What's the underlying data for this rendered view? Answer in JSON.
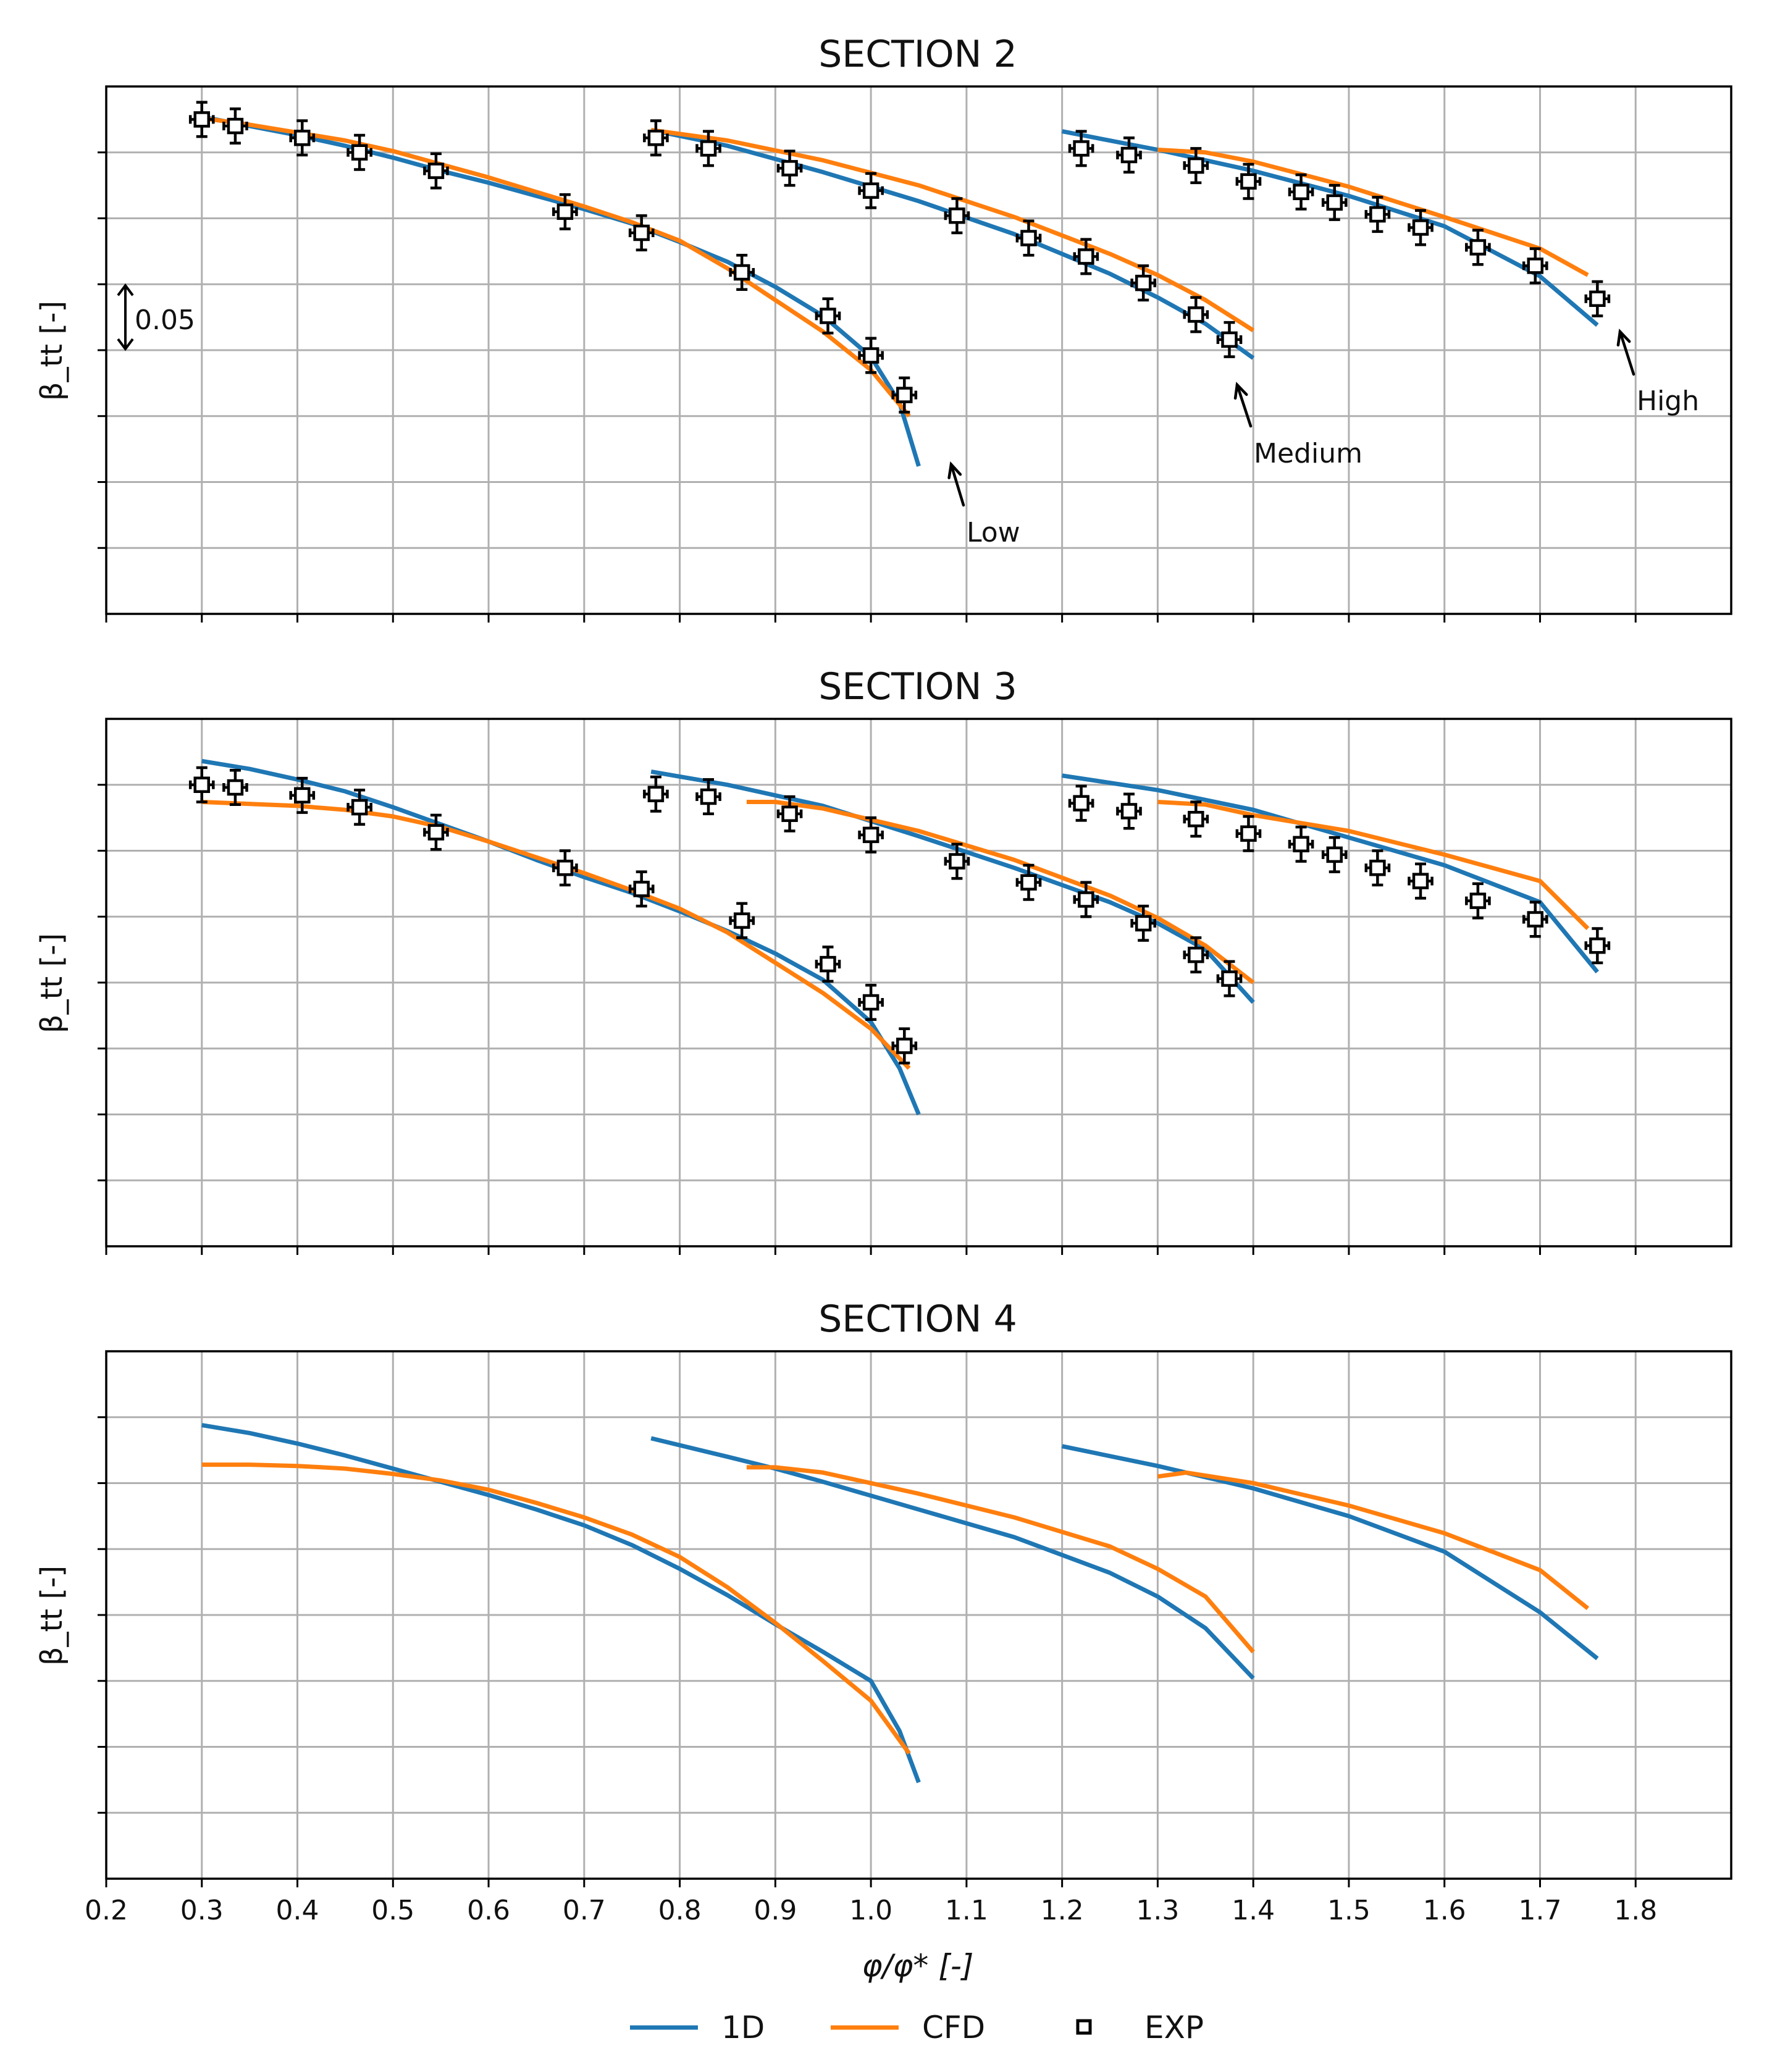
{
  "chart_data": {
    "type": "line",
    "xlabel": "φ/φ* [-]",
    "x_range": [
      0.2,
      1.9
    ],
    "x_ticks": [
      0.2,
      0.3,
      0.4,
      0.5,
      0.6,
      0.7,
      0.8,
      0.9,
      1.0,
      1.1,
      1.2,
      1.3,
      1.4,
      1.5,
      1.6,
      1.7,
      1.8
    ],
    "x_tick_labels": [
      "0.2",
      "0.3",
      "0.4",
      "0.5",
      "0.6",
      "0.7",
      "0.8",
      "0.9",
      "1.0",
      "1.1",
      "1.2",
      "1.3",
      "1.4",
      "1.5",
      "1.6",
      "1.7",
      "1.8"
    ],
    "y_range": [
      0.0,
      0.4
    ],
    "y_ticks": [
      0.05,
      0.1,
      0.15,
      0.2,
      0.25,
      0.3,
      0.35
    ],
    "y_tick_labels_shown": false,
    "legend": {
      "placement": "bottom-center",
      "entries": [
        {
          "key": "1d",
          "label": "1D",
          "color": "#1f77b4",
          "marker": "line"
        },
        {
          "key": "cfd",
          "label": "CFD",
          "color": "#ff7f0e",
          "marker": "line"
        },
        {
          "key": "exp",
          "label": "EXP",
          "color": "#000000",
          "marker": "square"
        }
      ]
    },
    "panels": [
      {
        "title": "SECTION 2",
        "ylabel": "β_tt [-]",
        "scale_bar": {
          "label": "0.05",
          "from": 0.2,
          "to": 0.25
        },
        "annotations": [
          {
            "text": "Low",
            "curve": "low"
          },
          {
            "text": "Medium",
            "curve": "medium"
          },
          {
            "text": "High",
            "curve": "high"
          }
        ],
        "series": [
          {
            "name": "1D",
            "curve": "low",
            "x": [
              0.3,
              0.35,
              0.4,
              0.45,
              0.5,
              0.55,
              0.6,
              0.65,
              0.7,
              0.75,
              0.8,
              0.85,
              0.9,
              0.95,
              1.0,
              1.03,
              1.05
            ],
            "y": [
              0.377,
              0.37,
              0.363,
              0.355,
              0.346,
              0.336,
              0.327,
              0.317,
              0.307,
              0.296,
              0.282,
              0.267,
              0.248,
              0.226,
              0.195,
              0.16,
              0.112
            ]
          },
          {
            "name": "CFD",
            "curve": "low",
            "x": [
              0.3,
              0.35,
              0.4,
              0.45,
              0.5,
              0.55,
              0.6,
              0.65,
              0.7,
              0.75,
              0.8,
              0.85,
              0.9,
              0.95,
              1.0,
              1.04
            ],
            "y": [
              0.376,
              0.371,
              0.365,
              0.359,
              0.351,
              0.341,
              0.331,
              0.32,
              0.309,
              0.297,
              0.283,
              0.262,
              0.238,
              0.214,
              0.185,
              0.15
            ]
          },
          {
            "name": "1D",
            "curve": "medium",
            "x": [
              0.77,
              0.85,
              0.95,
              1.05,
              1.15,
              1.25,
              1.3,
              1.35,
              1.4
            ],
            "y": [
              0.367,
              0.355,
              0.335,
              0.313,
              0.288,
              0.258,
              0.24,
              0.22,
              0.194
            ]
          },
          {
            "name": "CFD",
            "curve": "medium",
            "x": [
              0.77,
              0.85,
              0.95,
              1.05,
              1.15,
              1.25,
              1.3,
              1.35,
              1.4
            ],
            "y": [
              0.367,
              0.359,
              0.344,
              0.325,
              0.301,
              0.273,
              0.257,
              0.238,
              0.215
            ]
          },
          {
            "name": "1D",
            "curve": "high",
            "x": [
              1.2,
              1.3,
              1.4,
              1.5,
              1.6,
              1.7,
              1.76
            ],
            "y": [
              0.366,
              0.352,
              0.336,
              0.317,
              0.294,
              0.256,
              0.219
            ]
          },
          {
            "name": "CFD",
            "curve": "high",
            "x": [
              1.3,
              1.35,
              1.4,
              1.5,
              1.6,
              1.7,
              1.75
            ],
            "y": [
              0.352,
              0.35,
              0.343,
              0.324,
              0.301,
              0.277,
              0.257
            ]
          },
          {
            "name": "EXP",
            "x": [
              0.3,
              0.335,
              0.405,
              0.465,
              0.545,
              0.68,
              0.76,
              0.865,
              0.955,
              1.0,
              1.035,
              0.775,
              0.83,
              0.915,
              1.0,
              1.09,
              1.165,
              1.225,
              1.285,
              1.34,
              1.375,
              1.22,
              1.27,
              1.34,
              1.395,
              1.45,
              1.485,
              1.53,
              1.575,
              1.635,
              1.695,
              1.76
            ],
            "y": [
              0.375,
              0.37,
              0.361,
              0.35,
              0.336,
              0.305,
              0.289,
              0.259,
              0.226,
              0.196,
              0.166,
              0.361,
              0.353,
              0.338,
              0.321,
              0.302,
              0.285,
              0.271,
              0.251,
              0.227,
              0.208,
              0.353,
              0.348,
              0.34,
              0.328,
              0.32,
              0.312,
              0.303,
              0.293,
              0.278,
              0.264,
              0.239
            ],
            "err": 0.013
          }
        ]
      },
      {
        "title": "SECTION 3",
        "ylabel": "β_tt [-]",
        "series": [
          {
            "name": "1D",
            "curve": "low",
            "x": [
              0.3,
              0.35,
              0.4,
              0.45,
              0.5,
              0.55,
              0.6,
              0.65,
              0.7,
              0.75,
              0.8,
              0.85,
              0.9,
              0.95,
              1.0,
              1.03,
              1.05
            ],
            "y": [
              0.368,
              0.362,
              0.354,
              0.345,
              0.333,
              0.32,
              0.307,
              0.293,
              0.28,
              0.268,
              0.254,
              0.239,
              0.222,
              0.202,
              0.17,
              0.135,
              0.1
            ]
          },
          {
            "name": "CFD",
            "curve": "low",
            "x": [
              0.3,
              0.4,
              0.45,
              0.5,
              0.55,
              0.6,
              0.65,
              0.7,
              0.75,
              0.8,
              0.85,
              0.9,
              0.95,
              1.0,
              1.04
            ],
            "y": [
              0.337,
              0.334,
              0.331,
              0.326,
              0.318,
              0.307,
              0.295,
              0.283,
              0.27,
              0.256,
              0.238,
              0.215,
              0.192,
              0.165,
              0.135
            ]
          },
          {
            "name": "1D",
            "curve": "medium",
            "x": [
              0.77,
              0.85,
              0.95,
              1.05,
              1.15,
              1.25,
              1.3,
              1.35,
              1.4
            ],
            "y": [
              0.36,
              0.35,
              0.334,
              0.311,
              0.287,
              0.261,
              0.245,
              0.225,
              0.185
            ]
          },
          {
            "name": "CFD",
            "curve": "medium",
            "x": [
              0.87,
              0.9,
              0.95,
              1.05,
              1.15,
              1.25,
              1.3,
              1.35,
              1.4
            ],
            "y": [
              0.337,
              0.337,
              0.332,
              0.315,
              0.293,
              0.266,
              0.249,
              0.228,
              0.2
            ]
          },
          {
            "name": "1D",
            "curve": "high",
            "x": [
              1.2,
              1.3,
              1.4,
              1.5,
              1.6,
              1.7,
              1.76
            ],
            "y": [
              0.357,
              0.346,
              0.331,
              0.31,
              0.289,
              0.261,
              0.208
            ]
          },
          {
            "name": "CFD",
            "curve": "high",
            "x": [
              1.3,
              1.35,
              1.4,
              1.5,
              1.6,
              1.7,
              1.75
            ],
            "y": [
              0.337,
              0.335,
              0.327,
              0.315,
              0.297,
              0.277,
              0.241
            ]
          },
          {
            "name": "EXP",
            "x": [
              0.3,
              0.335,
              0.405,
              0.465,
              0.545,
              0.68,
              0.76,
              0.865,
              0.955,
              1.0,
              1.035,
              0.775,
              0.83,
              0.915,
              1.0,
              1.09,
              1.165,
              1.225,
              1.285,
              1.34,
              1.375,
              1.22,
              1.27,
              1.34,
              1.395,
              1.45,
              1.485,
              1.53,
              1.575,
              1.635,
              1.695,
              1.76
            ],
            "y": [
              0.35,
              0.348,
              0.342,
              0.333,
              0.314,
              0.287,
              0.271,
              0.247,
              0.214,
              0.185,
              0.152,
              0.343,
              0.341,
              0.328,
              0.312,
              0.292,
              0.276,
              0.263,
              0.245,
              0.221,
              0.203,
              0.336,
              0.33,
              0.324,
              0.313,
              0.305,
              0.297,
              0.287,
              0.277,
              0.262,
              0.248,
              0.228
            ],
            "err": 0.013
          }
        ]
      },
      {
        "title": "SECTION 4",
        "ylabel": "β_tt [-]",
        "series": [
          {
            "name": "1D",
            "curve": "low",
            "x": [
              0.3,
              0.35,
              0.4,
              0.45,
              0.5,
              0.55,
              0.6,
              0.65,
              0.7,
              0.75,
              0.8,
              0.85,
              0.9,
              0.95,
              1.0,
              1.03,
              1.05
            ],
            "y": [
              0.344,
              0.338,
              0.33,
              0.321,
              0.311,
              0.301,
              0.291,
              0.28,
              0.268,
              0.253,
              0.235,
              0.215,
              0.193,
              0.172,
              0.15,
              0.112,
              0.073
            ]
          },
          {
            "name": "CFD",
            "curve": "low",
            "x": [
              0.3,
              0.35,
              0.4,
              0.45,
              0.5,
              0.55,
              0.6,
              0.65,
              0.7,
              0.75,
              0.8,
              0.85,
              0.9,
              0.95,
              1.0,
              1.04
            ],
            "y": [
              0.314,
              0.314,
              0.313,
              0.311,
              0.307,
              0.302,
              0.295,
              0.285,
              0.274,
              0.261,
              0.244,
              0.221,
              0.194,
              0.165,
              0.135,
              0.095
            ]
          },
          {
            "name": "1D",
            "curve": "medium",
            "x": [
              0.77,
              0.85,
              0.9,
              0.95,
              1.05,
              1.15,
              1.25,
              1.3,
              1.35,
              1.4
            ],
            "y": [
              0.334,
              0.32,
              0.311,
              0.301,
              0.28,
              0.259,
              0.232,
              0.214,
              0.19,
              0.152
            ]
          },
          {
            "name": "CFD",
            "curve": "medium",
            "x": [
              0.87,
              0.9,
              0.95,
              1.05,
              1.15,
              1.25,
              1.3,
              1.35,
              1.4
            ],
            "y": [
              0.312,
              0.312,
              0.308,
              0.292,
              0.274,
              0.252,
              0.235,
              0.214,
              0.172
            ]
          },
          {
            "name": "1D",
            "curve": "high",
            "x": [
              1.2,
              1.3,
              1.4,
              1.5,
              1.6,
              1.7,
              1.76
            ],
            "y": [
              0.328,
              0.313,
              0.296,
              0.275,
              0.248,
              0.202,
              0.167
            ]
          },
          {
            "name": "CFD",
            "curve": "high",
            "x": [
              1.3,
              1.33,
              1.4,
              1.5,
              1.6,
              1.7,
              1.75
            ],
            "y": [
              0.305,
              0.308,
              0.3,
              0.283,
              0.262,
              0.234,
              0.205
            ]
          }
        ]
      }
    ]
  }
}
